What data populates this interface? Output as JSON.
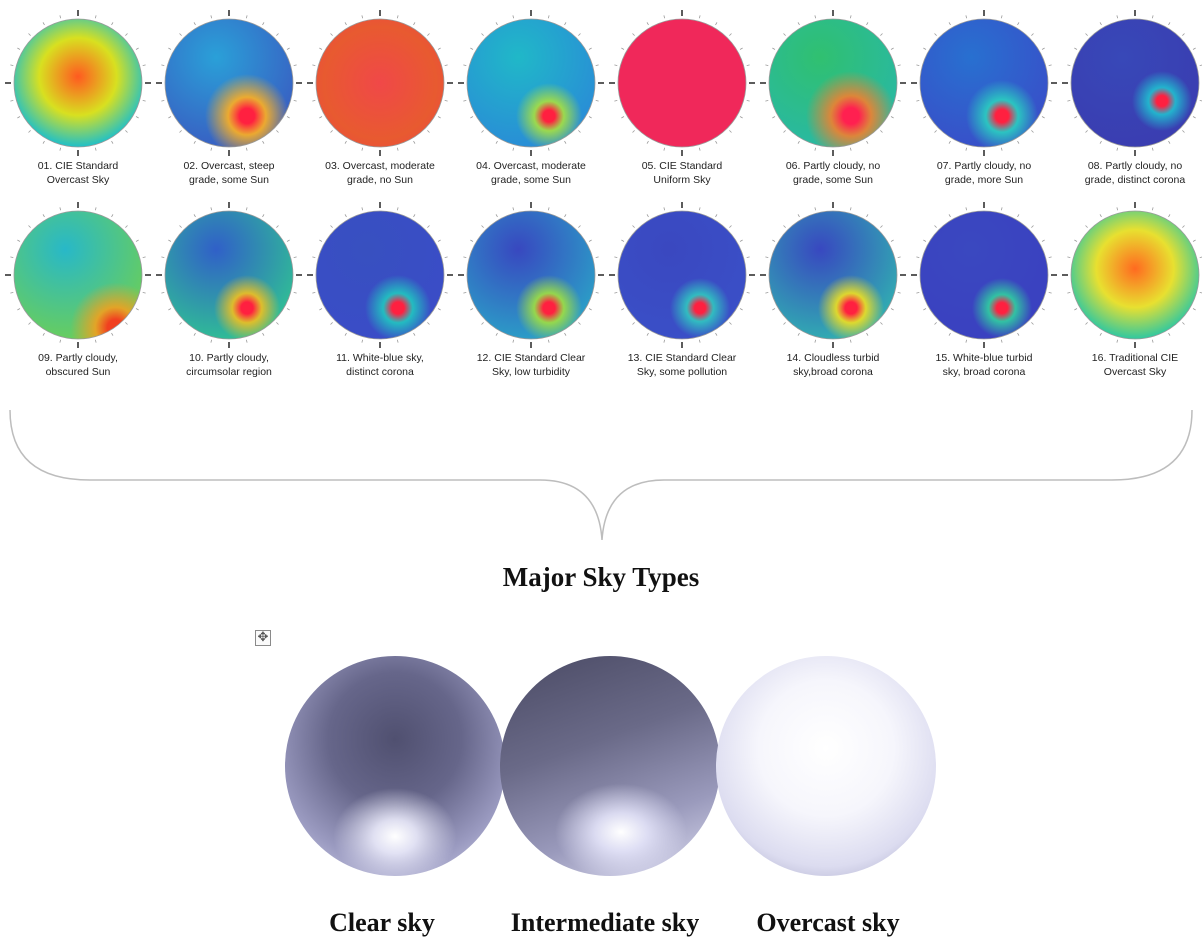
{
  "sky_models": [
    {
      "label_line1": "01. CIE Standard",
      "label_line2": "Overcast Sky",
      "bg": "#1fc0c8",
      "sun": null,
      "center_color": "#ff5a20",
      "center": [
        0.5,
        0.45
      ],
      "radius": 0.55,
      "mid_color": "#d8e020"
    },
    {
      "label_line1": "02. Overcast, steep",
      "label_line2": "grade, some Sun",
      "bg": "#3a58c0",
      "sun": [
        0.62,
        0.72
      ],
      "sun_color": "#ff2040",
      "glow_color": "#ffb020",
      "glow_r": 0.28,
      "top_color": "#2aa0d8"
    },
    {
      "label_line1": "03. Overcast, moderate",
      "label_line2": "grade, no Sun",
      "bg": "#f03a50",
      "sun": null,
      "center_color": "#f04848",
      "center": [
        0.5,
        0.5
      ],
      "radius": 0.8,
      "mid_color": "#e85a30"
    },
    {
      "label_line1": "04. Overcast, moderate",
      "label_line2": "grade, some Sun",
      "bg": "#2a88d8",
      "sun": [
        0.62,
        0.72
      ],
      "sun_color": "#ff2040",
      "glow_color": "#a8e040",
      "glow_r": 0.22,
      "top_color": "#20b8c8"
    },
    {
      "label_line1": "05. CIE Standard",
      "label_line2": "Uniform Sky",
      "bg": "#f0285a",
      "sun": null,
      "center_color": "#f0285a",
      "center": [
        0.5,
        0.5
      ],
      "radius": 0.9,
      "mid_color": "#f0285a"
    },
    {
      "label_line1": "06. Partly cloudy, no",
      "label_line2": "grade, some Sun",
      "bg": "#28b8a8",
      "sun": [
        0.62,
        0.72
      ],
      "sun_color": "#ff2050",
      "glow_color": "#f08030",
      "glow_r": 0.3,
      "top_color": "#30c070"
    },
    {
      "label_line1": "07. Partly cloudy, no",
      "label_line2": "grade, more Sun",
      "bg": "#3a4cc8",
      "sun": [
        0.62,
        0.72
      ],
      "sun_color": "#ff2040",
      "glow_color": "#2ad0c0",
      "glow_r": 0.24,
      "top_color": "#2870d0"
    },
    {
      "label_line1": "08. Partly cloudy, no",
      "label_line2": "grade, distinct corona",
      "bg": "#3a3cb0",
      "sun": [
        0.68,
        0.62
      ],
      "sun_color": "#ff2040",
      "glow_color": "#20c0d0",
      "glow_r": 0.2,
      "top_color": "#3848b8"
    },
    {
      "label_line1": "09. Partly cloudy,",
      "label_line2": "obscured Sun",
      "bg": "#70d050",
      "sun": [
        0.75,
        0.85
      ],
      "sun_color": "#f04020",
      "glow_color": "#f0a020",
      "glow_r": 0.3,
      "top_color": "#28b8c8"
    },
    {
      "label_line1": "10. Partly cloudy,",
      "label_line2": "circumsolar region",
      "bg": "#30c890",
      "sun": [
        0.62,
        0.72
      ],
      "sun_color": "#ff2040",
      "glow_color": "#f0c020",
      "glow_r": 0.22,
      "top_color": "#3060c8"
    },
    {
      "label_line1": "11. White-blue sky,",
      "label_line2": "distinct corona",
      "bg": "#3a4cc8",
      "sun": [
        0.62,
        0.72
      ],
      "sun_color": "#ff2040",
      "glow_color": "#20c8c0",
      "glow_r": 0.22,
      "top_color": "#3850c0"
    },
    {
      "label_line1": "12. CIE Standard Clear",
      "label_line2": "Sky, low turbidity",
      "bg": "#2aa8c8",
      "sun": [
        0.62,
        0.72
      ],
      "sun_color": "#ff2040",
      "glow_color": "#a0e040",
      "glow_r": 0.22,
      "top_color": "#3848c0"
    },
    {
      "label_line1": "13. CIE Standard Clear",
      "label_line2": "Sky, some pollution",
      "bg": "#3a50c8",
      "sun": [
        0.62,
        0.72
      ],
      "sun_color": "#ff2040",
      "glow_color": "#30c8c0",
      "glow_r": 0.2,
      "top_color": "#3a48c0"
    },
    {
      "label_line1": "14. Cloudless turbid",
      "label_line2": "sky,broad corona",
      "bg": "#30b8b0",
      "sun": [
        0.62,
        0.72
      ],
      "sun_color": "#ff2040",
      "glow_color": "#f0e020",
      "glow_r": 0.22,
      "top_color": "#3848c0"
    },
    {
      "label_line1": "15. White-blue turbid",
      "label_line2": "sky, broad corona",
      "bg": "#3a40c0",
      "sun": [
        0.62,
        0.72
      ],
      "sun_color": "#ff2040",
      "glow_color": "#30d0a0",
      "glow_r": 0.2,
      "top_color": "#3a48c0"
    },
    {
      "label_line1": "16. Traditional CIE",
      "label_line2": "Overcast Sky",
      "bg": "#30c8a0",
      "sun": null,
      "center_color": "#ff6a20",
      "center": [
        0.5,
        0.45
      ],
      "radius": 0.55,
      "mid_color": "#e8e030"
    }
  ],
  "section_title": "Major Sky Types",
  "move_handle_icon": "move-icon",
  "major_types": [
    {
      "label": "Clear sky",
      "shading": "clear"
    },
    {
      "label": "Intermediate sky",
      "shading": "intermediate"
    },
    {
      "label": "Overcast sky",
      "shading": "overcast"
    }
  ]
}
